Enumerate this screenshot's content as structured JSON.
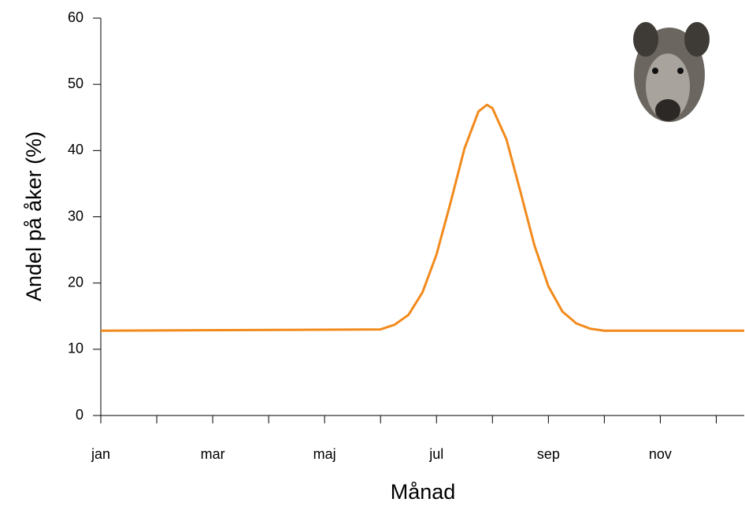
{
  "chart_data": {
    "type": "line",
    "y_label": "Andel på åker (%)",
    "x_label": "Månad",
    "x": [
      0,
      5,
      5.25,
      5.5,
      5.75,
      6,
      6.25,
      6.5,
      6.75,
      6.9,
      7,
      7.25,
      7.5,
      7.75,
      8,
      8.25,
      8.5,
      8.75,
      9,
      11.5
    ],
    "series": [
      {
        "color": "#f28a1c",
        "values": [
          12.8,
          13.0,
          13.7,
          15.2,
          18.6,
          24.3,
          32.1,
          40.3,
          45.9,
          46.9,
          46.4,
          41.7,
          33.8,
          25.7,
          19.5,
          15.7,
          13.9,
          13.1,
          12.8,
          12.8
        ]
      }
    ],
    "xlim": [
      0,
      11.5
    ],
    "xticks": [
      {
        "value": 0,
        "label": "jan"
      },
      {
        "value": 2,
        "label": "mar"
      },
      {
        "value": 4,
        "label": "maj"
      },
      {
        "value": 6,
        "label": "jul"
      },
      {
        "value": 8,
        "label": "sep"
      },
      {
        "value": 10,
        "label": "nov"
      }
    ],
    "xminor_ticks": [
      1,
      3,
      5,
      7,
      9,
      11
    ],
    "ylim": [
      0,
      60
    ],
    "yticks": [
      0,
      10,
      20,
      30,
      40,
      50,
      60
    ]
  }
}
